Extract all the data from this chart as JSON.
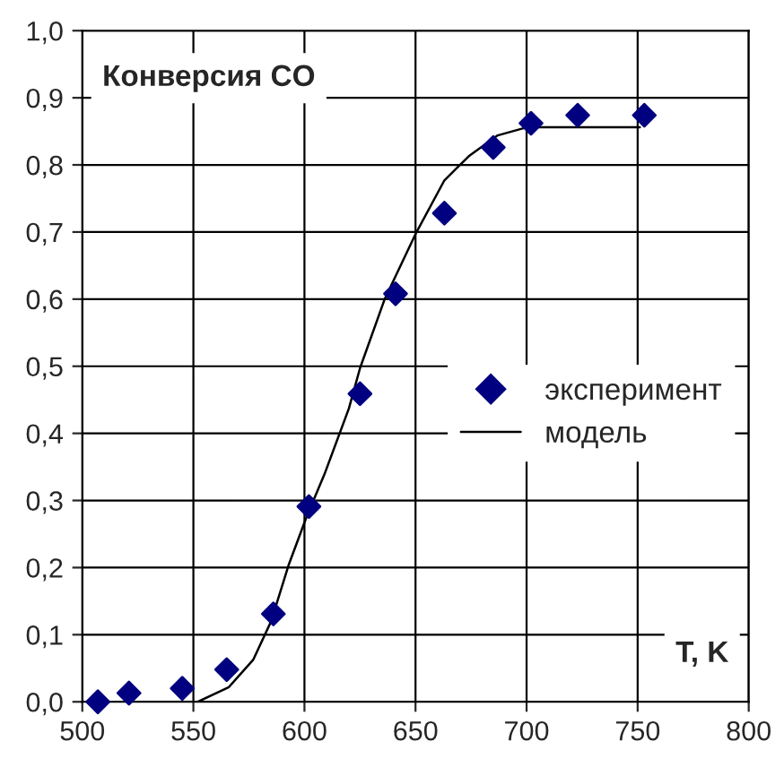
{
  "chart_data": {
    "type": "scatter",
    "title": "Конверсия CO",
    "xlabel": "T, K",
    "xlim": [
      500,
      800
    ],
    "xticks": [
      500,
      550,
      600,
      650,
      700,
      750,
      800
    ],
    "ylim": [
      0,
      1
    ],
    "yticks": [
      {
        "value": 0,
        "label": "0,0"
      },
      {
        "value": 0.1,
        "label": "0,1"
      },
      {
        "value": 0.2,
        "label": "0,2"
      },
      {
        "value": 0.3,
        "label": "0,3"
      },
      {
        "value": 0.4,
        "label": "0,4"
      },
      {
        "value": 0.5,
        "label": "0,5"
      },
      {
        "value": 0.6,
        "label": "0,6"
      },
      {
        "value": 0.7,
        "label": "0,7"
      },
      {
        "value": 0.8,
        "label": "0,8"
      },
      {
        "value": 0.9,
        "label": "0,9"
      },
      {
        "value": 1,
        "label": "1,0"
      }
    ],
    "grid": true,
    "legend": "right",
    "series": [
      {
        "name": "эксперимент",
        "marker": "diamond",
        "color": "#000080",
        "x": [
          507,
          521,
          545,
          565,
          586,
          602,
          625,
          641,
          663,
          685,
          702,
          723,
          753
        ],
        "values": [
          0.0,
          0.013,
          0.02,
          0.048,
          0.131,
          0.291,
          0.459,
          0.608,
          0.728,
          0.826,
          0.862,
          0.874,
          0.874
        ]
      },
      {
        "name": "модель",
        "type": "line",
        "marker": "none",
        "color": "#000000",
        "x": [
          527,
          545,
          552,
          566,
          577,
          585,
          593,
          601,
          609,
          620,
          625,
          636,
          650,
          663,
          674,
          687,
          700,
          714,
          751
        ],
        "values": [
          0.0,
          0.0,
          0.0,
          0.022,
          0.063,
          0.12,
          0.205,
          0.276,
          0.339,
          0.437,
          0.497,
          0.599,
          0.697,
          0.777,
          0.813,
          0.844,
          0.856,
          0.856,
          0.856
        ]
      }
    ]
  }
}
